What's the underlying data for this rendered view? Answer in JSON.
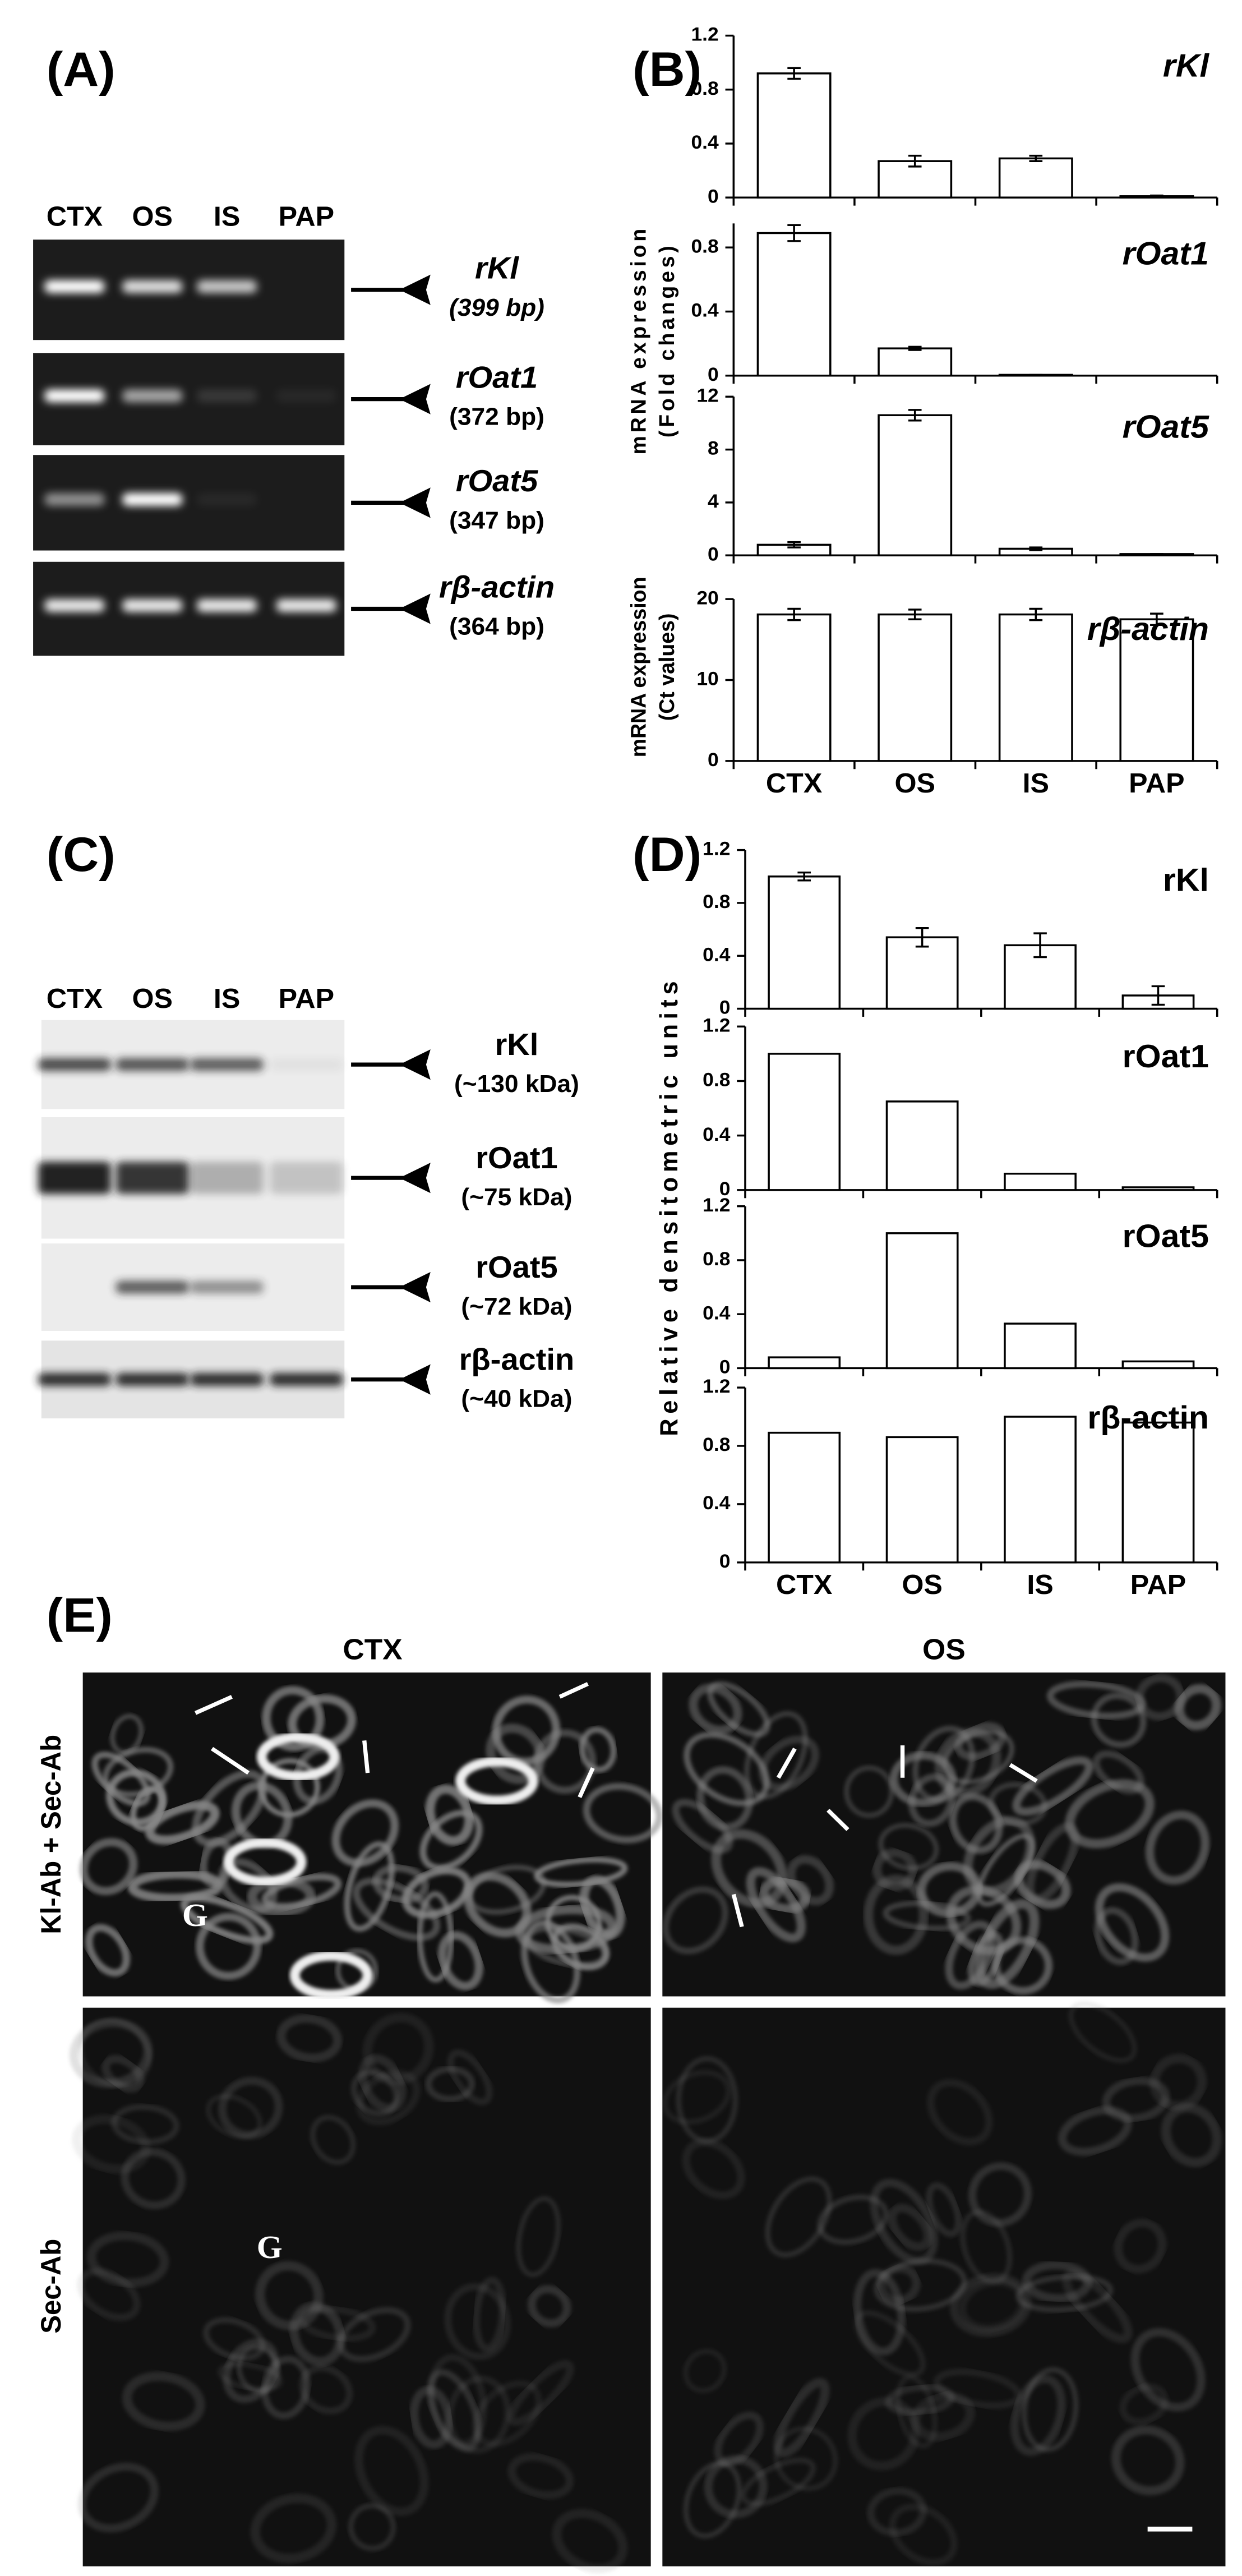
{
  "panel_labels": [
    "(A)",
    "(B)",
    "(C)",
    "(D)",
    "(E)"
  ],
  "gel_rna": {
    "lanes": [
      "CTX",
      "OS",
      "IS",
      "PAP"
    ],
    "bands": [
      {
        "name": "rKl",
        "size": "(399 bp)"
      },
      {
        "name": "rOat1",
        "size": "(372 bp)"
      },
      {
        "name": "rOat5",
        "size": "(347 bp)"
      },
      {
        "name": "rβ-actin",
        "size": "(364 bp)"
      }
    ]
  },
  "gel_protein": {
    "lanes": [
      "CTX",
      "OS",
      "IS",
      "PAP"
    ],
    "bands": [
      {
        "name": "rKl",
        "size": "(~130 kDa)"
      },
      {
        "name": "rOat1",
        "size": "(~75 kDa)"
      },
      {
        "name": "rOat5",
        "size": "(~72 kDa)"
      },
      {
        "name": "rβ-actin",
        "size": "(~40 kDa)"
      }
    ]
  },
  "chart_data": [
    {
      "type": "bar",
      "title": "rKl",
      "y_label": [
        "mRNA expression",
        "(Fold changes)"
      ],
      "values": [
        0.92,
        0.27,
        0.29,
        0.01
      ],
      "errors": [
        0.04,
        0.04,
        0.02,
        0.005
      ],
      "ylim": [
        0,
        1.2
      ],
      "yticks": [
        0,
        0.4,
        0.8,
        1.2
      ],
      "color": "#ffffff"
    },
    {
      "type": "bar",
      "title": "rOat1",
      "values": [
        0.89,
        0.17,
        0.005,
        0
      ],
      "errors": [
        0.05,
        0.01,
        0,
        0
      ],
      "ylim": [
        0,
        0.95
      ],
      "yticks": [
        0,
        0.4,
        0.8
      ],
      "color": "#ffffff"
    },
    {
      "type": "bar",
      "title": "rOat5",
      "values": [
        0.8,
        10.6,
        0.5,
        0.1
      ],
      "errors": [
        0.2,
        0.4,
        0.1,
        0
      ],
      "ylim": [
        0,
        12
      ],
      "yticks": [
        0,
        4,
        8,
        12
      ],
      "color": "#ffffff"
    },
    {
      "type": "bar",
      "title": "rβ-actin",
      "y_label": [
        "mRNA expression",
        "(Ct values)"
      ],
      "categories": [
        "CTX",
        "OS",
        "IS",
        "PAP"
      ],
      "values": [
        18.1,
        18.1,
        18.1,
        17.5
      ],
      "errors": [
        0.7,
        0.6,
        0.7,
        0.7
      ],
      "ylim": [
        0,
        20
      ],
      "yticks": [
        0,
        10,
        20
      ],
      "color": "#ffffff"
    },
    {
      "type": "bar",
      "title": "rKl",
      "y_label": [
        "Relative densitometric units"
      ],
      "values": [
        1.0,
        0.54,
        0.48,
        0.1
      ],
      "errors": [
        0.03,
        0.07,
        0.09,
        0.07
      ],
      "ylim": [
        0,
        1.2
      ],
      "yticks": [
        0,
        0.4,
        0.8,
        1.2
      ],
      "color": "#ffffff"
    },
    {
      "type": "bar",
      "title": "rOat1",
      "values": [
        1.0,
        0.65,
        0.12,
        0.02
      ],
      "ylim": [
        0,
        1.2
      ],
      "yticks": [
        0,
        0.4,
        0.8,
        1.2
      ],
      "color": "#ffffff"
    },
    {
      "type": "bar",
      "title": "rOat5",
      "values": [
        0.08,
        1.0,
        0.33,
        0.05
      ],
      "ylim": [
        0,
        1.2
      ],
      "yticks": [
        0,
        0.4,
        0.8,
        1.2
      ],
      "color": "#ffffff"
    },
    {
      "type": "bar",
      "title": "rβ-actin",
      "categories": [
        "CTX",
        "OS",
        "IS",
        "PAP"
      ],
      "values": [
        0.89,
        0.86,
        1.0,
        0.96
      ],
      "ylim": [
        0,
        1.2
      ],
      "yticks": [
        0,
        0.4,
        0.8,
        1.2
      ],
      "color": "#ffffff"
    }
  ],
  "micrographs": {
    "columns": [
      "CTX",
      "OS"
    ],
    "rows": [
      "Kl-Ab + Sec-Ab",
      "Sec-Ab"
    ],
    "markers": [
      "G",
      "G"
    ]
  }
}
